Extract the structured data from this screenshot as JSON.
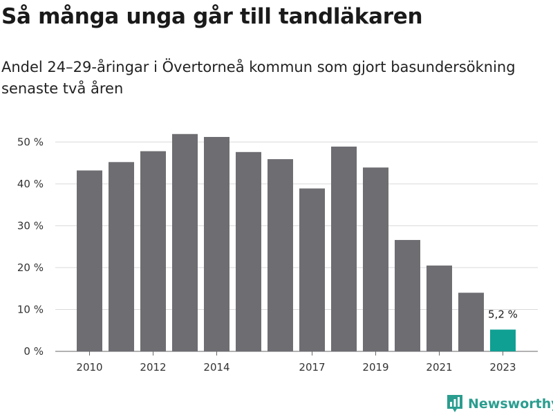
{
  "header": {
    "title": "Så många unga går till tandläkaren",
    "subtitle": "Andel 24–29-åringar i Övertorneå kommun som gjort basundersökning senaste två åren"
  },
  "brand": {
    "name": "Newsworthy",
    "color": "#2a9d8f",
    "icon": "bar-chart-logo-icon"
  },
  "chart_data": {
    "type": "bar",
    "categories": [
      "2010",
      "2011",
      "2012",
      "2013",
      "2014",
      "2015",
      "2016",
      "2017",
      "2018",
      "2019",
      "2020",
      "2021",
      "2022",
      "2023"
    ],
    "values": [
      43.2,
      45.2,
      47.8,
      51.9,
      51.2,
      47.6,
      45.9,
      38.9,
      48.9,
      43.9,
      26.6,
      20.5,
      14.0,
      5.2
    ],
    "x_tick_labels": [
      "2010",
      "2012",
      "2014",
      "2017",
      "2019",
      "2021",
      "2023"
    ],
    "y_ticks": [
      0,
      10,
      20,
      30,
      40,
      50
    ],
    "y_tick_labels": [
      "0 %",
      "10 %",
      "20 %",
      "30 %",
      "40 %",
      "50 %"
    ],
    "ylim": [
      0,
      55
    ],
    "bar_color": "#6d6d72",
    "highlight_color": "#0fa093",
    "highlight_index": 13,
    "annotation": "5,2 %",
    "grid": true,
    "xlabel": "",
    "ylabel": ""
  }
}
